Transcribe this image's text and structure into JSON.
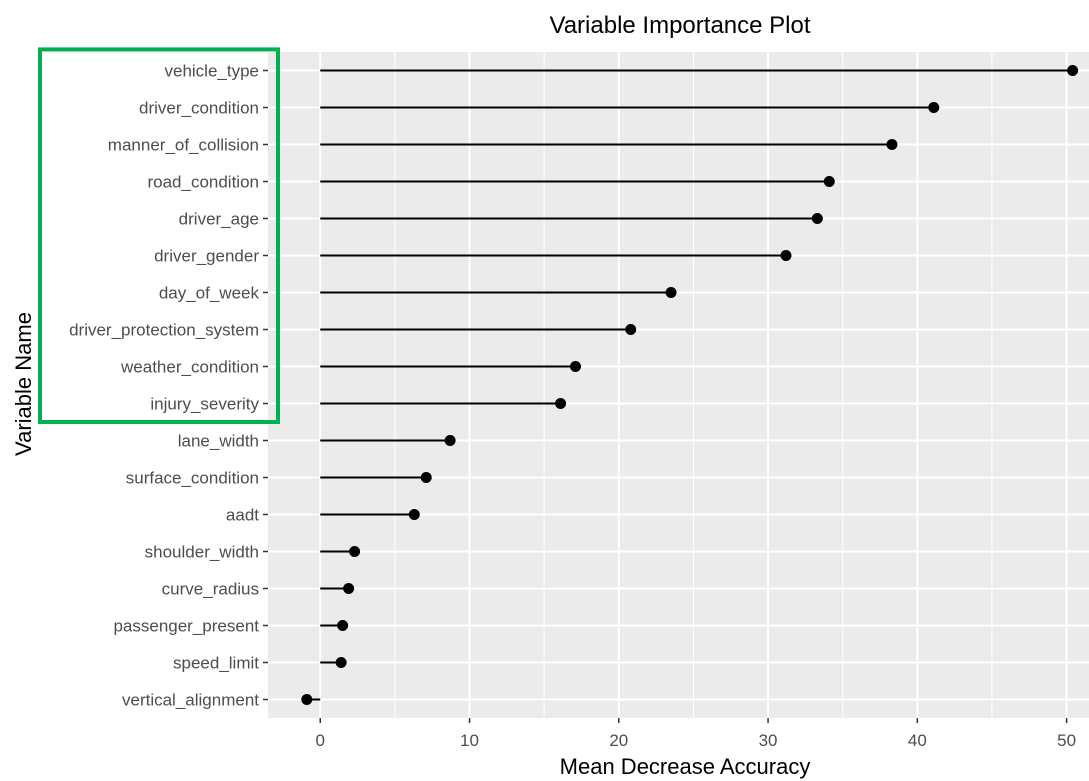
{
  "chart_data": {
    "type": "lollipop",
    "title": "Variable Importance Plot",
    "xlabel": "Mean Decrease Accuracy",
    "ylabel": "Variable Name",
    "xlim": [
      -3.5,
      51.5
    ],
    "xticks": [
      0,
      10,
      20,
      30,
      40,
      50
    ],
    "grid": true,
    "highlight_box": {
      "color": "#00b050",
      "categories": [
        "vehicle_type",
        "driver_condition",
        "manner_of_collision",
        "road_condition",
        "driver_age",
        "driver_gender",
        "day_of_week",
        "driver_protection_system",
        "weather_condition",
        "injury_severity"
      ]
    },
    "categories": [
      "vehicle_type",
      "driver_condition",
      "manner_of_collision",
      "road_condition",
      "driver_age",
      "driver_gender",
      "day_of_week",
      "driver_protection_system",
      "weather_condition",
      "injury_severity",
      "lane_width",
      "surface_condition",
      "aadt",
      "shoulder_width",
      "curve_radius",
      "passenger_present",
      "speed_limit",
      "vertical_alignment"
    ],
    "values": [
      50.4,
      41.1,
      38.3,
      34.1,
      33.3,
      31.2,
      23.5,
      20.8,
      17.1,
      16.1,
      8.7,
      7.1,
      6.3,
      2.3,
      1.9,
      1.5,
      1.4,
      -0.9
    ]
  }
}
